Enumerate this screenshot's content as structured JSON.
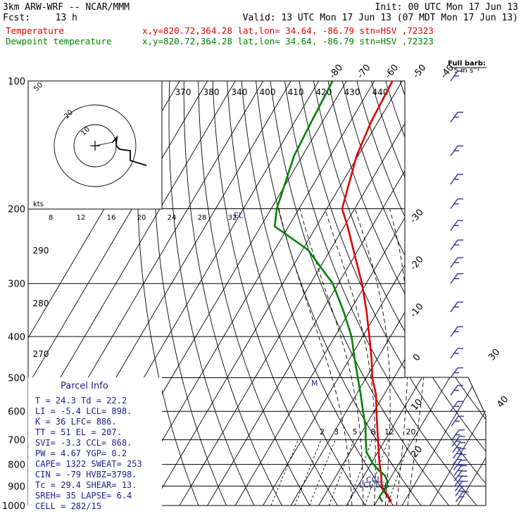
{
  "header": {
    "model": "3km ARW-WRF -- NCAR/MMM",
    "init": "Init: 00 UTC Mon 17 Jun 13",
    "fcst_label": "Fcst:",
    "fcst_value": "13 h",
    "valid": "Valid: 13 UTC Mon 17 Jun 13 (07 MDT Mon 17 Jun 13)",
    "temperature_label": "Temperature",
    "temperature_info": "x,y=820.72,364.28   lat,lon= 34.64, -86.79   stn=HSV ,72323",
    "dewpoint_label": "Dewpoint temperature",
    "dewpoint_info": "x,y=820.72,364.28   lat,lon= 34.64, -86.79   stn=HSV ,72323",
    "barb_legend_line1": "Full barb:",
    "barb_legend_line2": "5 m s⁻¹"
  },
  "colors": {
    "temperature": "#e00000",
    "dewpoint": "#008000",
    "hodograph": "#000000",
    "barbs": "#3030a0",
    "parcel_text": "#1c1c8c"
  },
  "chart_data": {
    "type": "line",
    "subtype": "skew-t log-p",
    "pressure_levels": [
      100,
      200,
      300,
      400,
      500,
      600,
      700,
      800,
      900,
      1000
    ],
    "isotherm_labels_top": [
      -80,
      -70,
      -60,
      -50,
      -40
    ],
    "isotherm_labels_right": [
      -30,
      -20,
      -10,
      0,
      10,
      20,
      30,
      40
    ],
    "theta_labels_top": [
      370,
      380,
      340,
      400,
      410,
      420,
      430,
      440
    ],
    "theta_labels_left": [
      290,
      280,
      270
    ],
    "mixing_ratio_labels": [
      2,
      3,
      5,
      8,
      12,
      20
    ],
    "temperature": {
      "name": "Temperature",
      "p": [
        980,
        975,
        950,
        925,
        900,
        850,
        800,
        700,
        600,
        550,
        500,
        450,
        400,
        350,
        300,
        250,
        220,
        200,
        150,
        125,
        100
      ],
      "t": [
        24.3,
        25.0,
        23.0,
        20.8,
        18.5,
        16.2,
        13.2,
        7.4,
        0.8,
        -2.7,
        -7.8,
        -12.2,
        -17.6,
        -23.8,
        -31.5,
        -41.7,
        -48.8,
        -54.5,
        -60.5,
        -62.5,
        -63.5
      ]
    },
    "dewpoint": {
      "name": "Dewpoint temperature",
      "p": [
        980,
        960,
        950,
        925,
        900,
        875,
        850,
        825,
        800,
        750,
        700,
        650,
        600,
        550,
        500,
        450,
        400,
        350,
        300,
        250,
        220,
        200,
        150,
        125,
        100
      ],
      "td": [
        22.2,
        20.5,
        20.0,
        20.3,
        20.5,
        19.5,
        17.5,
        14.0,
        11.0,
        6.0,
        3.0,
        0.0,
        -4.0,
        -8.2,
        -13.0,
        -18.3,
        -24.0,
        -32.0,
        -42.0,
        -58.0,
        -75.0,
        -78.0,
        -83.0,
        -84.0,
        -85.0
      ]
    },
    "wind_barbs_pressure": [
      980,
      950,
      925,
      900,
      875,
      850,
      825,
      800,
      775,
      750,
      725,
      700,
      650,
      600,
      550,
      500,
      450,
      400,
      350,
      300,
      275,
      250,
      225,
      200,
      175,
      150,
      125,
      100
    ],
    "hodograph": {
      "ring_labels": [
        10,
        20
      ],
      "axis_label": "kts",
      "axis_ticks": [
        8,
        12,
        16,
        20,
        24,
        28,
        32
      ],
      "top_label": "50"
    },
    "levels": {
      "el": "EL",
      "m": "M",
      "ccl": "CCL",
      "lcl_lfc": "LCL LFC"
    }
  },
  "parcel_info": {
    "title": "Parcel Info",
    "rows": [
      "T  =   24.3  Td =  22.2",
      "LI =   -5.4  LCL=  898.",
      "K  =     36  LFC=  886.",
      "TT =     51  EL =  207.",
      "SVI=   -3.3  CCL=  868.",
      "PW =   4.67  YGP=   0.2",
      "CAPE=  1322  SWEAT= 253",
      "CIN =   -79  HVBZ=3798.",
      "Tc =   29.4  SHEAR= 13.",
      "SREH=    35  LAPSE= 6.4",
      "CELL = 282/15"
    ]
  }
}
